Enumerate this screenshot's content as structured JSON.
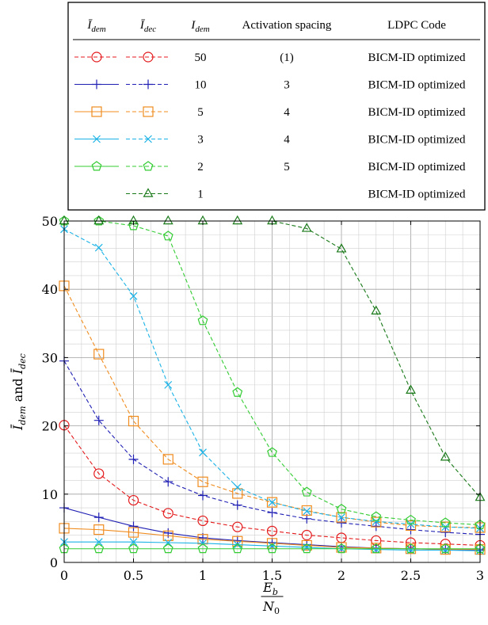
{
  "chart_data": {
    "type": "line",
    "xlabel_num": "E",
    "xlabel_num_sub": "b",
    "xlabel_den": "N",
    "xlabel_den_sub": "0",
    "ylabel": "Ī_dem and Ī_dec",
    "ylabel_parts": {
      "a": "Ī",
      "a_sub": "dem",
      "mid": " and ",
      "b": "Ī",
      "b_sub": "dec"
    },
    "xlim": [
      0,
      3
    ],
    "ylim": [
      0,
      50
    ],
    "xticks": [
      0,
      0.5,
      1,
      1.5,
      2,
      2.5,
      3
    ],
    "xtick_labels": [
      "0",
      "0.5",
      "1",
      "1.5",
      "2",
      "2.5",
      "3"
    ],
    "yticks": [
      0,
      10,
      20,
      30,
      40,
      50
    ],
    "ytick_labels": [
      "0",
      "10",
      "20",
      "30",
      "40",
      "50"
    ],
    "grid": true,
    "x": [
      0,
      0.25,
      0.5,
      0.75,
      1,
      1.25,
      1.5,
      1.75,
      2,
      2.25,
      2.5,
      2.75,
      3
    ],
    "series": [
      {
        "key": "r50",
        "group": "I_dem=50",
        "kind": "dec",
        "color": "#e41a1c",
        "marker": "circle",
        "dashed": true,
        "values": [
          20.1,
          13.0,
          9.1,
          7.2,
          6.1,
          5.2,
          4.6,
          4.0,
          3.6,
          3.2,
          2.9,
          2.7,
          2.5
        ]
      },
      {
        "key": "b10d",
        "group": "I_dem=10",
        "kind": "dem",
        "color": "#1f1fb4",
        "marker": "plus",
        "dashed": false,
        "values": [
          8.0,
          6.6,
          5.3,
          4.3,
          3.6,
          3.2,
          2.9,
          2.6,
          2.3,
          2.1,
          2.0,
          1.9,
          1.8
        ]
      },
      {
        "key": "b10c",
        "group": "I_dem=10",
        "kind": "dec",
        "color": "#1f1fb4",
        "marker": "plus",
        "dashed": true,
        "values": [
          29.5,
          20.8,
          15.1,
          11.8,
          9.8,
          8.4,
          7.3,
          6.4,
          5.8,
          5.3,
          4.8,
          4.4,
          4.1
        ]
      },
      {
        "key": "o5d",
        "group": "I_dem=5",
        "kind": "dem",
        "color": "#f08c1e",
        "marker": "square",
        "dashed": false,
        "values": [
          5.0,
          4.8,
          4.4,
          3.9,
          3.4,
          3.1,
          2.8,
          2.5,
          2.2,
          2.1,
          2.0,
          1.9,
          1.9
        ]
      },
      {
        "key": "o5c",
        "group": "I_dem=5",
        "kind": "dec",
        "color": "#f08c1e",
        "marker": "square",
        "dashed": true,
        "values": [
          40.5,
          30.5,
          20.7,
          15.1,
          11.8,
          10.1,
          8.8,
          7.6,
          6.6,
          5.9,
          5.4,
          5.2,
          5.1
        ]
      },
      {
        "key": "c3d",
        "group": "I_dem=3",
        "kind": "dem",
        "color": "#1ab2e6",
        "marker": "cross",
        "dashed": false,
        "values": [
          3.0,
          3.0,
          3.0,
          2.9,
          2.8,
          2.6,
          2.4,
          2.2,
          2.0,
          1.9,
          1.8,
          1.8,
          1.7
        ]
      },
      {
        "key": "c3c",
        "group": "I_dem=3",
        "kind": "dec",
        "color": "#1ab2e6",
        "marker": "cross",
        "dashed": true,
        "values": [
          48.8,
          46.1,
          39.0,
          26.0,
          16.1,
          11.0,
          8.8,
          7.5,
          6.6,
          6.0,
          5.6,
          5.2,
          5.0
        ]
      },
      {
        "key": "g2d",
        "group": "I_dem=2",
        "kind": "dem",
        "color": "#33cc33",
        "marker": "pentagon",
        "dashed": false,
        "values": [
          2.0,
          2.0,
          2.0,
          2.0,
          2.0,
          2.0,
          2.0,
          2.0,
          2.0,
          2.0,
          2.0,
          2.0,
          2.0
        ]
      },
      {
        "key": "g2c",
        "group": "I_dem=2",
        "kind": "dec",
        "color": "#33cc33",
        "marker": "pentagon",
        "dashed": true,
        "values": [
          50.0,
          50.0,
          49.3,
          47.8,
          35.4,
          24.9,
          16.1,
          10.3,
          7.8,
          6.7,
          6.2,
          5.8,
          5.5
        ]
      },
      {
        "key": "dg1",
        "group": "I_dem=1",
        "kind": "dec",
        "color": "#1a7a1a",
        "marker": "triangle",
        "dashed": true,
        "values": [
          50.0,
          50.0,
          50.0,
          50.0,
          50.0,
          50.0,
          50.0,
          48.9,
          45.9,
          36.8,
          25.2,
          15.4,
          9.5
        ]
      }
    ],
    "legend": {
      "placement": "top",
      "headers": {
        "col1": "Ī",
        "col1_sub": "dem",
        "col2": "Ī",
        "col2_sub": "dec",
        "col3": "I",
        "col3_sub": "dem",
        "col4": "Activation spacing",
        "col5": "LDPC Code"
      },
      "rows": [
        {
          "dem_key": "",
          "dec_key": "r50",
          "dem_sample_color": "#e41a1c",
          "dem_sample_marker": "circle",
          "dem_sample_dashed": true,
          "I_dem": "50",
          "spacing": "(1)",
          "code": "BICM-ID optimized"
        },
        {
          "dem_key": "b10d",
          "dec_key": "b10c",
          "I_dem": "10",
          "spacing": "3",
          "code": "BICM-ID optimized"
        },
        {
          "dem_key": "o5d",
          "dec_key": "o5c",
          "I_dem": "5",
          "spacing": "4",
          "code": "BICM-ID optimized"
        },
        {
          "dem_key": "c3d",
          "dec_key": "c3c",
          "I_dem": "3",
          "spacing": "4",
          "code": "BICM-ID optimized"
        },
        {
          "dem_key": "g2d",
          "dec_key": "g2c",
          "I_dem": "2",
          "spacing": "5",
          "code": "BICM-ID optimized"
        },
        {
          "dem_key": "",
          "dec_key": "dg1",
          "I_dem": "1",
          "spacing": "",
          "code": "BICM-ID optimized"
        }
      ]
    }
  }
}
